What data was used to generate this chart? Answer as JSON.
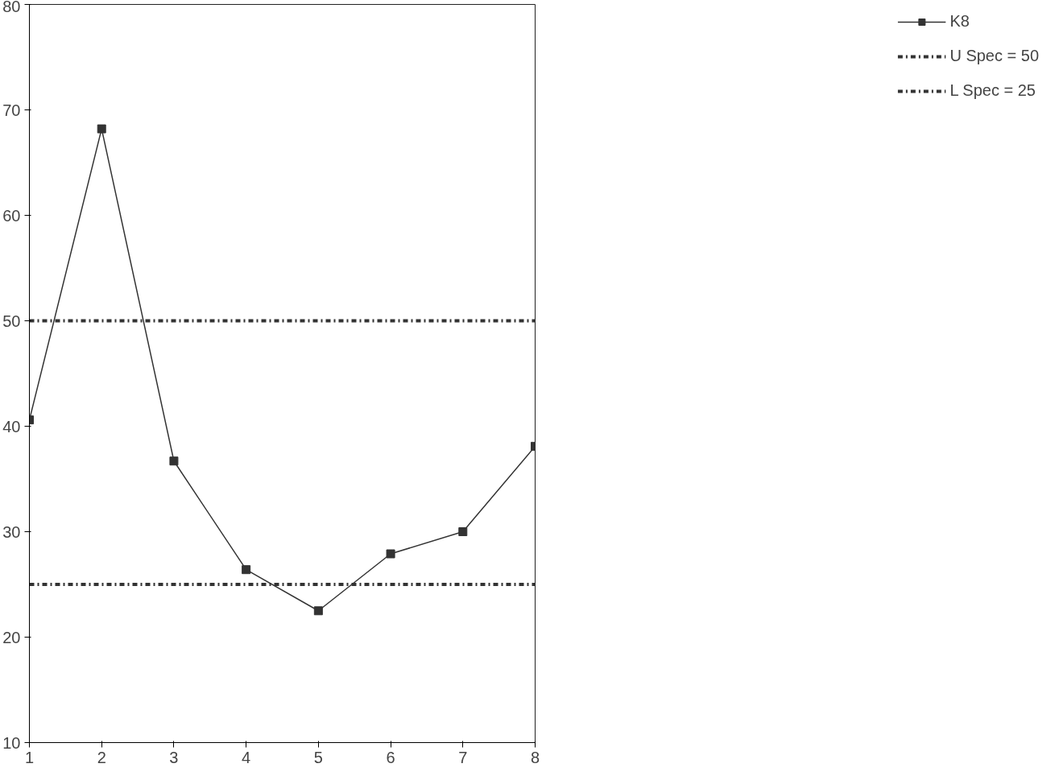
{
  "chart_data": {
    "type": "line",
    "x": [
      1,
      2,
      3,
      4,
      5,
      6,
      7,
      8
    ],
    "series": [
      {
        "name": "K8",
        "color": "#333333",
        "values": [
          40.6,
          68.2,
          36.7,
          26.4,
          22.5,
          27.9,
          30.0,
          38.1
        ]
      }
    ],
    "xlim": [
      1,
      8
    ],
    "xticks": [
      1,
      2,
      3,
      4,
      5,
      6,
      7,
      8
    ],
    "ylim": [
      10,
      80
    ],
    "yticks": [
      10,
      20,
      30,
      40,
      50,
      60,
      70,
      80
    ],
    "ref_lines": [
      {
        "axis": "y",
        "value": 50,
        "label": "U Spec = 50",
        "color": "#333333",
        "line_style": "dashdot"
      },
      {
        "axis": "y",
        "value": 25,
        "label": "L Spec = 25",
        "color": "#333333",
        "line_style": "dashdot"
      }
    ],
    "marker": "square",
    "line_style": "solid",
    "grid": false,
    "legend": "right"
  }
}
